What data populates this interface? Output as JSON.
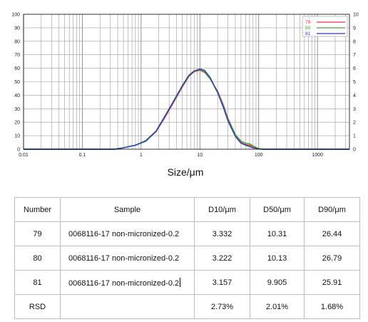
{
  "chart_data": {
    "type": "line",
    "title": "",
    "xlabel": "Size/μm",
    "ylabel": "",
    "x_scale": "log",
    "xlim": [
      0.01,
      3500
    ],
    "ylim": [
      0,
      100
    ],
    "y2lim": [
      0,
      10
    ],
    "grid": true,
    "legend_position": "top-right",
    "x_tick_labels": [
      "0.01",
      "0.1",
      "1",
      "10",
      "100",
      "1000"
    ],
    "y_tick_labels": [
      "0",
      "10",
      "20",
      "30",
      "40",
      "50",
      "60",
      "70",
      "80",
      "90",
      "100"
    ],
    "y2_tick_labels": [
      "0",
      "1",
      "2",
      "3",
      "4",
      "5",
      "6",
      "7",
      "8",
      "9",
      "10"
    ],
    "series": [
      {
        "name": "79",
        "color": "#e53935",
        "x": [
          0.35,
          0.5,
          0.8,
          1.2,
          1.8,
          2.5,
          3.5,
          5,
          6.5,
          8,
          10,
          12,
          15,
          20,
          25,
          30,
          40,
          50,
          60,
          70,
          80,
          100,
          120
        ],
        "y": [
          0,
          0.1,
          0.3,
          0.6,
          1.3,
          2.3,
          3.4,
          4.6,
          5.4,
          5.75,
          5.85,
          5.7,
          5.2,
          4.3,
          3.3,
          2.3,
          1.1,
          0.5,
          0.35,
          0.3,
          0.2,
          0.05,
          0
        ]
      },
      {
        "name": "80",
        "color": "#43a047",
        "x": [
          0.35,
          0.5,
          0.8,
          1.2,
          1.8,
          2.5,
          3.5,
          5,
          6.5,
          8,
          10,
          12,
          15,
          20,
          25,
          30,
          40,
          50,
          60,
          70,
          80,
          100,
          120
        ],
        "y": [
          0,
          0.1,
          0.3,
          0.65,
          1.35,
          2.4,
          3.5,
          4.7,
          5.5,
          5.8,
          5.9,
          5.75,
          5.2,
          4.2,
          3.2,
          2.2,
          1.1,
          0.6,
          0.45,
          0.4,
          0.25,
          0.05,
          0
        ]
      },
      {
        "name": "81",
        "color": "#1e40af",
        "x": [
          0.35,
          0.5,
          0.8,
          1.2,
          1.8,
          2.5,
          3.5,
          5,
          6.5,
          8,
          10,
          12,
          15,
          20,
          25,
          30,
          40,
          50,
          60,
          70,
          80,
          100,
          120
        ],
        "y": [
          0,
          0.1,
          0.3,
          0.6,
          1.35,
          2.4,
          3.5,
          4.7,
          5.45,
          5.8,
          5.95,
          5.85,
          5.3,
          4.2,
          3.1,
          2.1,
          0.95,
          0.45,
          0.3,
          0.2,
          0.1,
          0.02,
          0
        ]
      }
    ]
  },
  "table": {
    "headers": [
      "Number",
      "Sample",
      "D10/μm",
      "D50/μm",
      "D90/μm"
    ],
    "rows": [
      [
        "79",
        "0068116-17 non-micronized-0.2",
        "3.332",
        "10.31",
        "26.44"
      ],
      [
        "80",
        "0068116-17 non-micronized-0.2",
        "3.222",
        "10.13",
        "26.79"
      ],
      [
        "81",
        "0068116-17 non-micronized-0.2",
        "3.157",
        "9.905",
        "25.91"
      ],
      [
        "RSD",
        "",
        "2.73%",
        "2.01%",
        "1.68%"
      ]
    ]
  }
}
